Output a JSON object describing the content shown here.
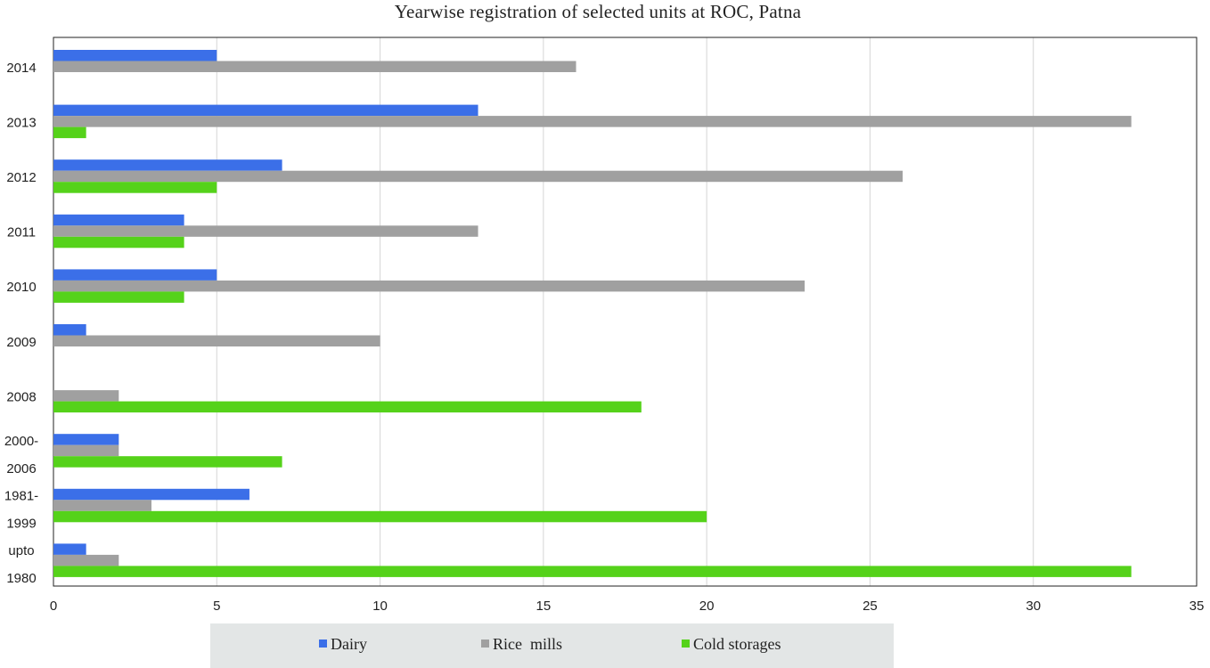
{
  "chart_data": {
    "type": "bar",
    "orientation": "horizontal",
    "title": "Yearwise registration  of selected units at ROC, Patna",
    "categories": [
      [
        "2014"
      ],
      [
        "2013"
      ],
      [
        "2012"
      ],
      [
        "2011"
      ],
      [
        "2010"
      ],
      [
        "2009"
      ],
      [
        "2008"
      ],
      [
        "2000-",
        "2006"
      ],
      [
        "1981-",
        "1999"
      ],
      [
        "upto",
        "1980"
      ]
    ],
    "series": [
      {
        "name": "Dairy",
        "color": "#3b6fe8",
        "values": [
          5,
          13,
          7,
          4,
          5,
          1,
          0,
          2,
          6,
          1
        ]
      },
      {
        "name": "Rice  mills",
        "color": "#a0a0a0",
        "values": [
          16,
          33,
          26,
          13,
          23,
          10,
          2,
          2,
          3,
          2
        ]
      },
      {
        "name": "Cold storages",
        "color": "#55d21a",
        "values": [
          0,
          1,
          5,
          4,
          4,
          0,
          18,
          7,
          20,
          33
        ]
      }
    ],
    "xlim": [
      0,
      35
    ],
    "xticks": [
      0,
      5,
      10,
      15,
      20,
      25,
      30,
      35
    ],
    "grid": true,
    "legend_position": "bottom"
  }
}
